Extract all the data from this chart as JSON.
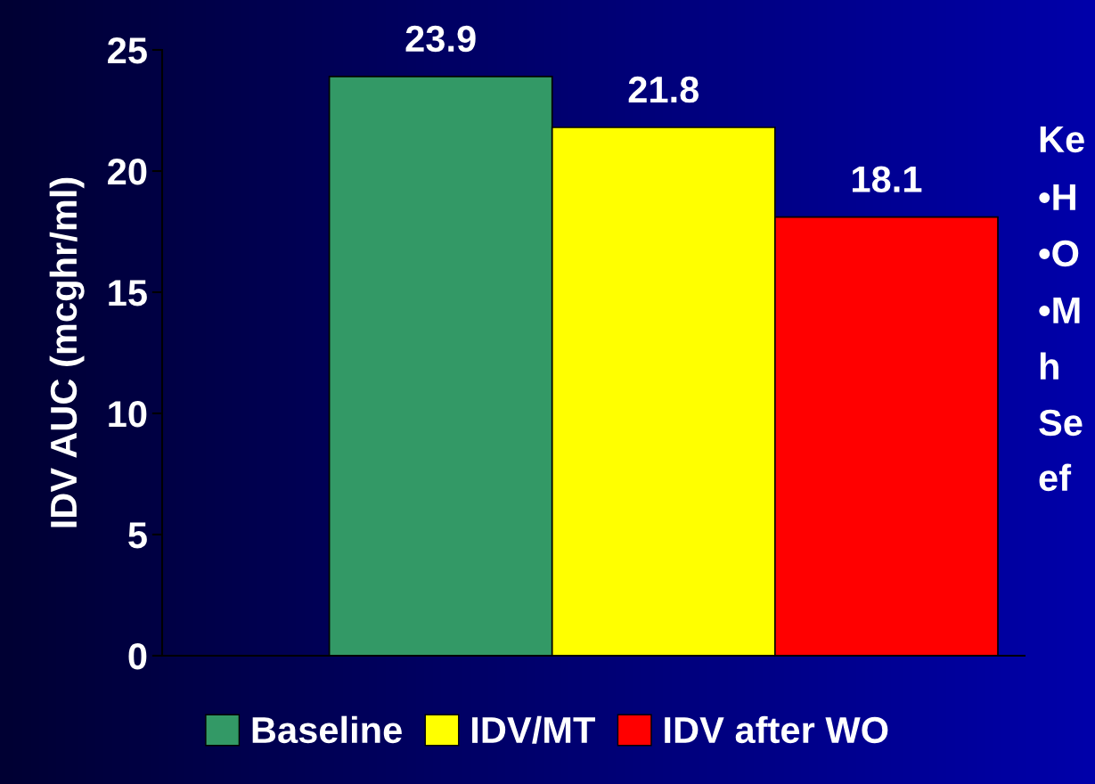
{
  "chart_data": {
    "type": "bar",
    "ylabel": "IDV AUC (mcghr/ml)",
    "categories": [
      null
    ],
    "series": [
      {
        "name": "Baseline",
        "color": "#339966",
        "values": [
          23.9
        ]
      },
      {
        "name": "IDV/MT",
        "color": "#ffff00",
        "values": [
          21.8
        ]
      },
      {
        "name": "IDV after WO",
        "color": "#ff0000",
        "values": [
          18.1
        ]
      }
    ],
    "ylim": [
      0,
      25
    ],
    "yticks": [
      0,
      5,
      10,
      15,
      20,
      25
    ],
    "data_labels": true,
    "grid": false,
    "legend": "bottom",
    "annotations": [
      "Ke",
      "•H",
      "•O",
      "•M",
      "h",
      "Se",
      "ef"
    ]
  }
}
